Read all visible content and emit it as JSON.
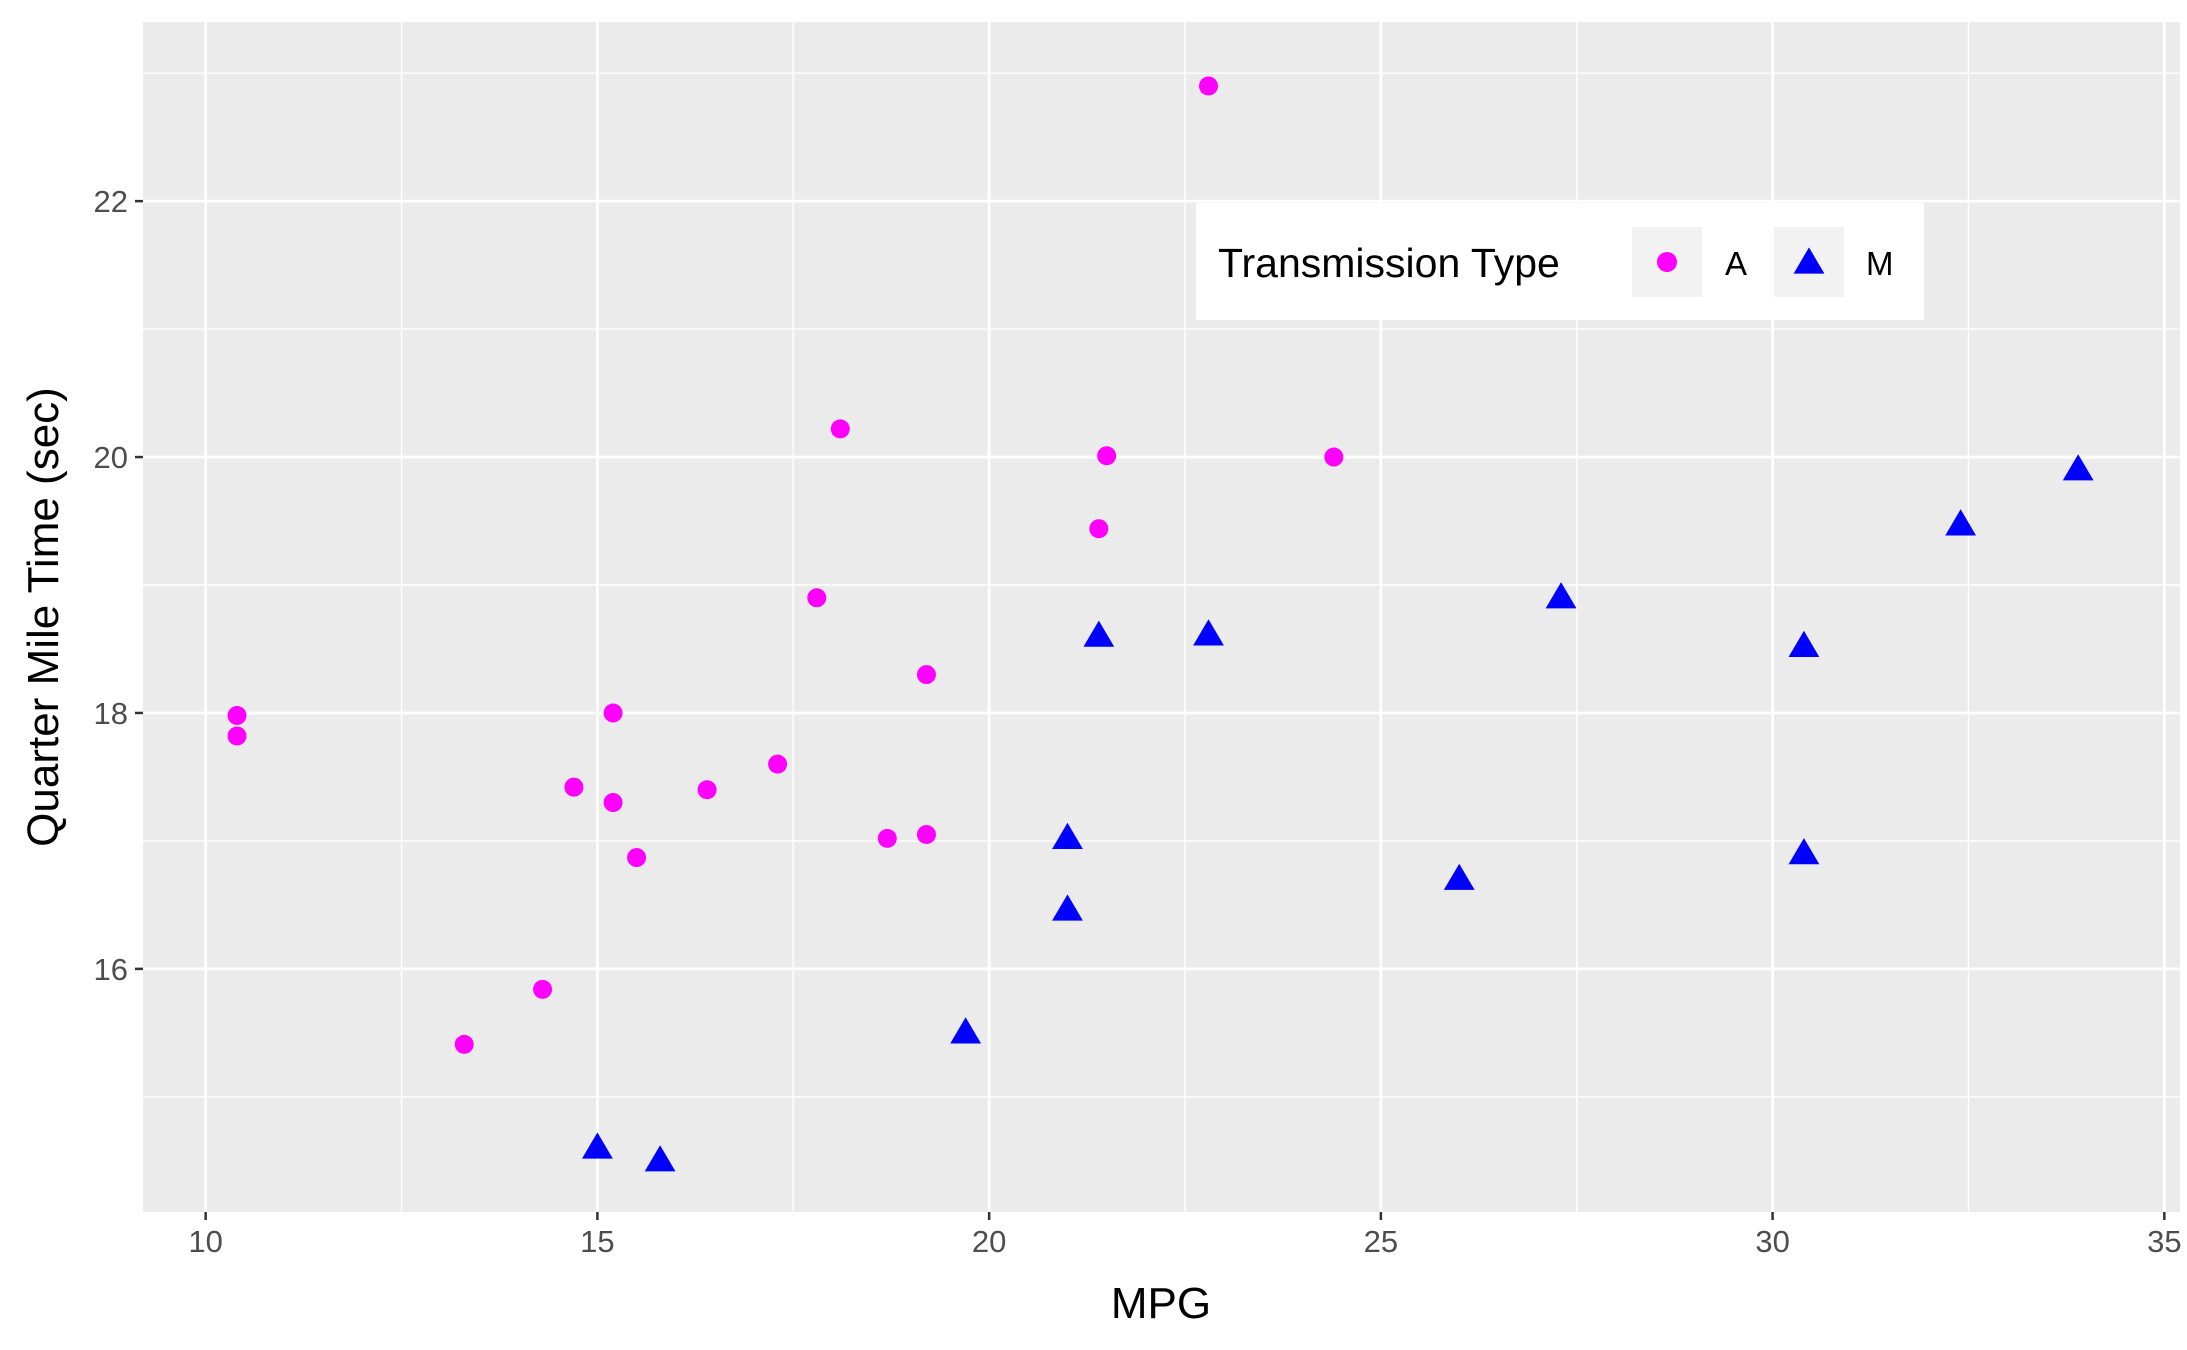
{
  "chart_data": {
    "type": "scatter",
    "xlabel": "MPG",
    "ylabel": "Quarter Mile Time (sec)",
    "xlim": [
      9.2,
      35.2
    ],
    "ylim": [
      14.1,
      23.4
    ],
    "x_ticks": [
      10,
      15,
      20,
      25,
      30,
      35
    ],
    "x_tick_labels": [
      "10",
      "15",
      "20",
      "25",
      "30",
      "35"
    ],
    "y_ticks": [
      16,
      18,
      20,
      22
    ],
    "y_tick_labels": [
      "16",
      "18",
      "20",
      "22"
    ],
    "grid": true,
    "legend": {
      "title": "Transmission Type",
      "placement": "inside-top-right",
      "entries": [
        {
          "label": "A",
          "shape": "circle",
          "color": "#FF00FF"
        },
        {
          "label": "M",
          "shape": "triangle",
          "color": "#0000FF"
        }
      ]
    },
    "series": [
      {
        "name": "A",
        "shape": "circle",
        "color": "#FF00FF",
        "points": [
          [
            21.4,
            19.44
          ],
          [
            18.7,
            17.02
          ],
          [
            18.1,
            20.22
          ],
          [
            14.3,
            15.84
          ],
          [
            24.4,
            20.0
          ],
          [
            22.8,
            22.9
          ],
          [
            19.2,
            18.3
          ],
          [
            17.8,
            18.9
          ],
          [
            16.4,
            17.4
          ],
          [
            17.3,
            17.6
          ],
          [
            15.2,
            18.0
          ],
          [
            10.4,
            17.98
          ],
          [
            10.4,
            17.82
          ],
          [
            14.7,
            17.42
          ],
          [
            21.5,
            20.01
          ],
          [
            15.5,
            16.87
          ],
          [
            15.2,
            17.3
          ],
          [
            13.3,
            15.41
          ],
          [
            19.2,
            17.05
          ]
        ]
      },
      {
        "name": "M",
        "shape": "triangle",
        "color": "#0000FF",
        "points": [
          [
            21.0,
            16.46
          ],
          [
            21.0,
            17.02
          ],
          [
            22.8,
            18.61
          ],
          [
            32.4,
            19.47
          ],
          [
            30.4,
            18.52
          ],
          [
            33.9,
            19.9
          ],
          [
            27.3,
            18.9
          ],
          [
            26.0,
            16.7
          ],
          [
            30.4,
            16.9
          ],
          [
            15.8,
            14.5
          ],
          [
            19.7,
            15.5
          ],
          [
            15.0,
            14.6
          ],
          [
            21.4,
            18.6
          ]
        ]
      }
    ]
  },
  "theme": {
    "panel_background": "#EBEBEB",
    "grid_color": "#FFFFFF",
    "axis_text_color": "#4D4D4D"
  }
}
